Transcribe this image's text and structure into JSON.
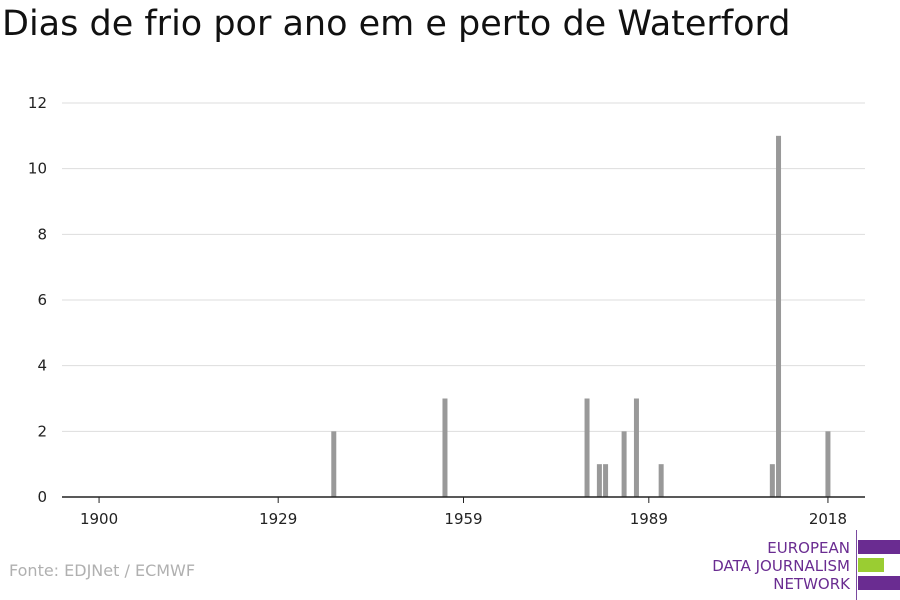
{
  "title": "Dias de frio por ano em e perto de Waterford",
  "source": "Fonte: EDJNet / ECMWF",
  "logo": {
    "lines": [
      "EUROPEAN",
      "DATA JOURNALISM",
      "NETWORK"
    ],
    "colors": {
      "purple": "#6a2c91",
      "green": "#9acd32"
    }
  },
  "chart_data": {
    "type": "bar",
    "title": "Dias de frio por ano em e perto de Waterford",
    "xlabel": "",
    "ylabel": "",
    "x_ticks": [
      1900,
      1929,
      1959,
      1989,
      2018
    ],
    "y_ticks": [
      0,
      2,
      4,
      6,
      8,
      10,
      12
    ],
    "xlim": [
      1894,
      2024
    ],
    "ylim": [
      0,
      12
    ],
    "grid": true,
    "bar_color": "#999999",
    "x": [
      1938,
      1956,
      1979,
      1981,
      1982,
      1985,
      1987,
      1991,
      2009,
      2010,
      2018
    ],
    "values": [
      2,
      3,
      3,
      1,
      1,
      2,
      3,
      1,
      1,
      11,
      2
    ]
  }
}
